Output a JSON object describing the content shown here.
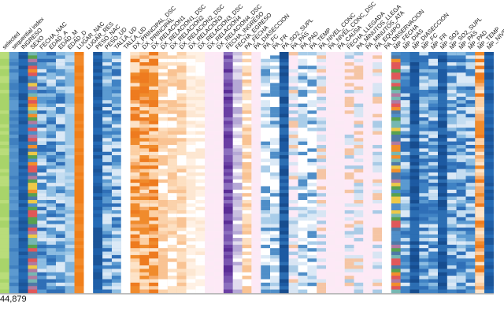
{
  "chart_data": {
    "type": "heatmap",
    "subtype": "table-lens matrix",
    "row_count_label": "44,879",
    "columns": [
      {
        "label": "selected",
        "scale": "green"
      },
      {
        "label": "sequential index",
        "scale": "blue-seq"
      },
      {
        "label": "INGRESO",
        "scale": "blue-dark"
      },
      {
        "label": "SEXO",
        "scale": "categorical"
      },
      {
        "label": "FECHA_NAC",
        "scale": "blue-noise"
      },
      {
        "label": "EDAD_A",
        "scale": "blue-noise"
      },
      {
        "label": "EDAD_M",
        "scale": "blue-noise"
      },
      {
        "label": "EDAD_D",
        "scale": "blue-light"
      },
      {
        "label": "LUGAR_NAC",
        "scale": "orange-solid"
      },
      {
        "label": "LUGAR_RES",
        "scale": "white"
      },
      {
        "label": "PESO_NAC",
        "scale": "blue-dark"
      },
      {
        "label": "PESO_UD",
        "scale": "blue-noise"
      },
      {
        "label": "TALLA_UD",
        "scale": "blue-noise"
      },
      {
        "label": "TALLA_UD",
        "scale": "white"
      },
      {
        "label": "DX_PRINCIPAL_DSC",
        "scale": "orange-noise"
      },
      {
        "label": "DX_PRINCIPAL",
        "scale": "orange-noise"
      },
      {
        "label": "DX_RELACION1",
        "scale": "orange-noise"
      },
      {
        "label": "DX_RELACION1_DSC",
        "scale": "orange-light"
      },
      {
        "label": "DX_RELACION2",
        "scale": "orange-light"
      },
      {
        "label": "DX_RELACION2_DSC",
        "scale": "orange-light"
      },
      {
        "label": "DX_RELACION3",
        "scale": "orange-pale"
      },
      {
        "label": "DX_RELACION3_DSC",
        "scale": "orange-pale"
      },
      {
        "label": "DX_RELACION4",
        "scale": "pink"
      },
      {
        "label": "DX_RELACION4_DSC",
        "scale": "pink"
      },
      {
        "label": "FECHA_INGRESO",
        "scale": "purple"
      },
      {
        "label": "FECHA_EGRESO",
        "scale": "purple-light"
      },
      {
        "label": "PA_FECHA",
        "scale": "orange-light"
      },
      {
        "label": "PA_DIASECCION",
        "scale": "pink"
      },
      {
        "label": "PA_FC",
        "scale": "blue-sparse"
      },
      {
        "label": "PA_FR",
        "scale": "blue-sparse"
      },
      {
        "label": "PA_SO2_SUPL",
        "scale": "blue-navy"
      },
      {
        "label": "PA_PAS",
        "scale": "pink-noise"
      },
      {
        "label": "PA_PAD",
        "scale": "blue-sparse"
      },
      {
        "label": "PA_TEMP",
        "scale": "blue-sparse"
      },
      {
        "label": "PA_NIVEL_CONC",
        "scale": "pink-noise"
      },
      {
        "label": "PA_NIVEL_CONC_DSC",
        "scale": "pink"
      },
      {
        "label": "PA_CAUSA",
        "scale": "pink"
      },
      {
        "label": "FECHA_LLEGADA",
        "scale": "pink-noise"
      },
      {
        "label": "PA_MINUTOS_LLEGA",
        "scale": "pink-noise"
      },
      {
        "label": "PA_MINUTOS_ATA",
        "scale": "pink"
      },
      {
        "label": "PA_EQUIPO",
        "scale": "pink-noise"
      },
      {
        "label": "PA_OBSERVACION",
        "scale": "white"
      },
      {
        "label": "MP_FECHA",
        "scale": "categorical"
      },
      {
        "label": "MP_DIAS",
        "scale": "blue-noise"
      },
      {
        "label": "MP_DIASECCION",
        "scale": "blue-navy"
      },
      {
        "label": "MP_FC",
        "scale": "blue-noise"
      },
      {
        "label": "MP_FR",
        "scale": "blue-noise"
      },
      {
        "label": "MP_SO2",
        "scale": "blue-navy"
      },
      {
        "label": "MP_SO2_SUPL",
        "scale": "blue-noise"
      },
      {
        "label": "MP_PAS",
        "scale": "blue-noise"
      },
      {
        "label": "MP_PAD",
        "scale": "blue-noise"
      },
      {
        "label": "MP_TEMP",
        "scale": "orange-noise"
      },
      {
        "label": "MP_NIVEL",
        "scale": "blue-dark"
      }
    ]
  }
}
